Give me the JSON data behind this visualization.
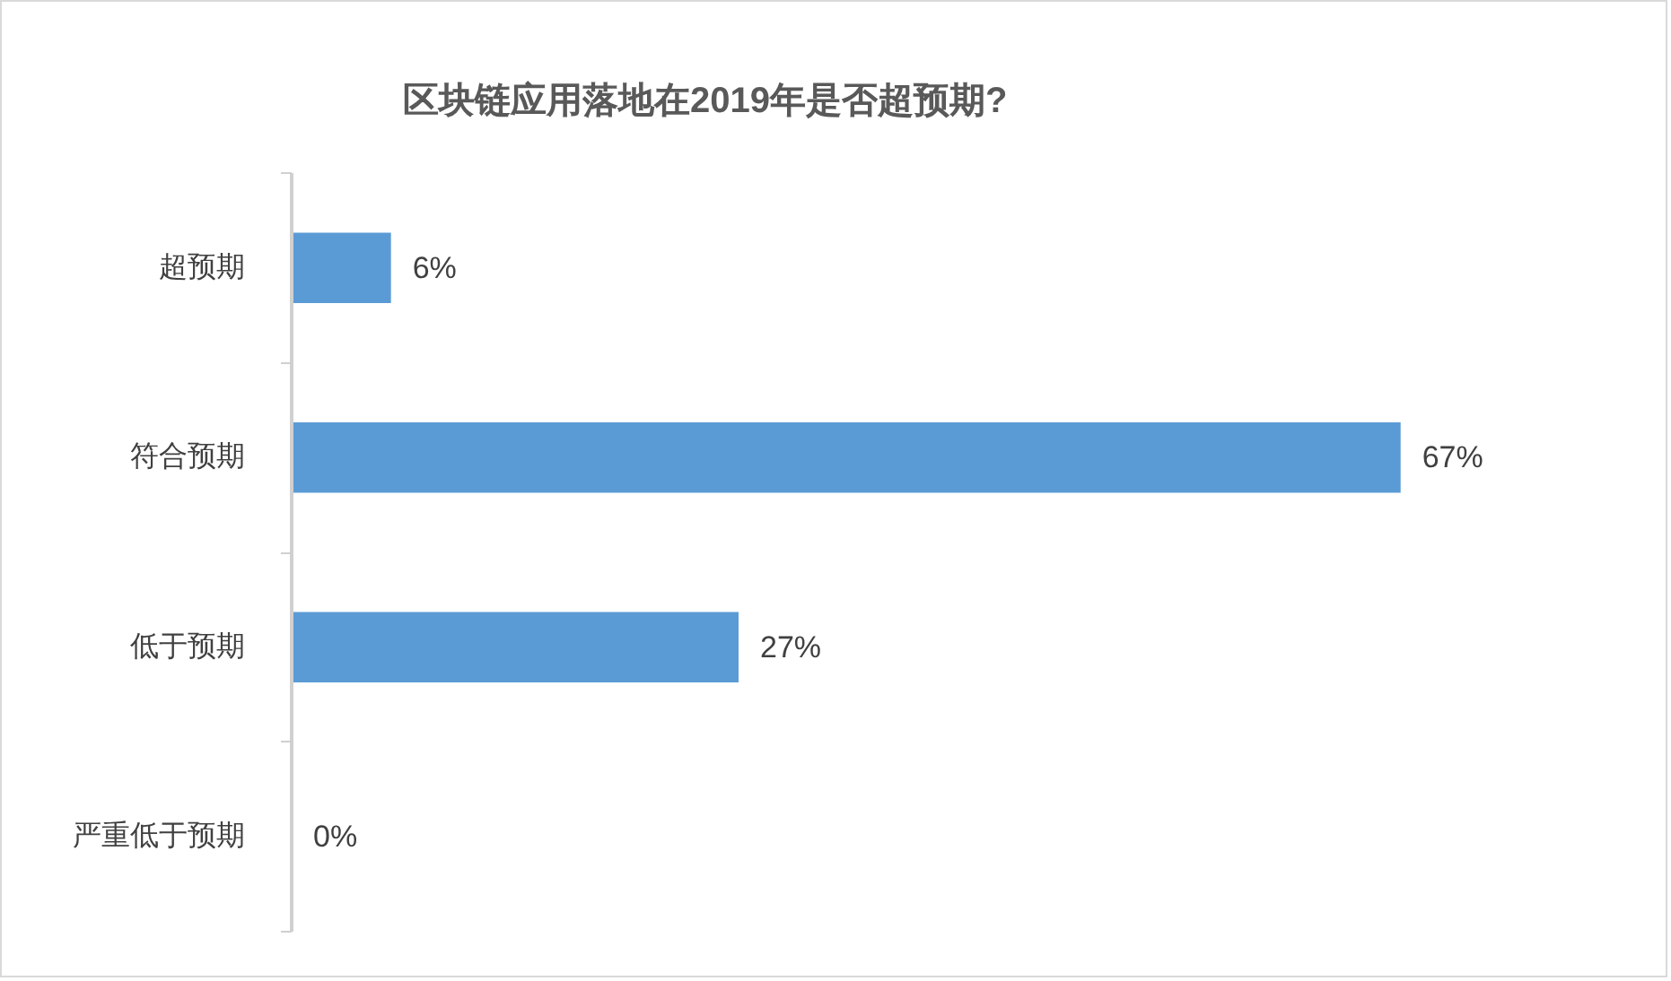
{
  "chart_data": {
    "type": "bar",
    "orientation": "horizontal",
    "title": "区块链应用落地在2019年是否超预期?",
    "categories": [
      "超预期",
      "符合预期",
      "低于预期",
      "严重低于预期"
    ],
    "values": [
      6,
      67,
      27,
      0
    ],
    "value_labels": [
      "6%",
      "67%",
      "27%",
      "0%"
    ],
    "color": "#5b9bd5",
    "tick_labels": "y"
  }
}
